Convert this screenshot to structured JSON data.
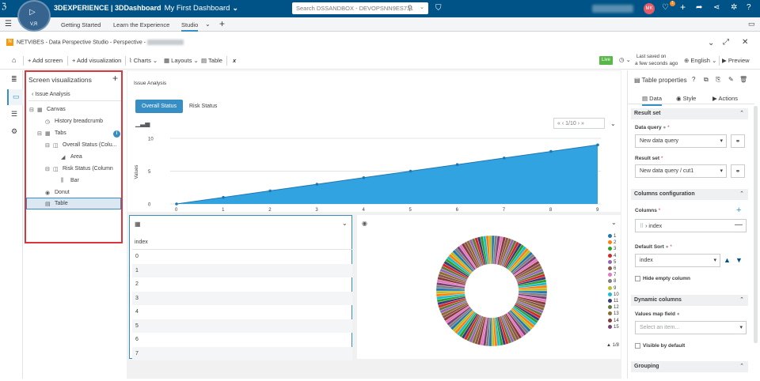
{
  "topbar": {
    "brand_bold": "3DEXPERIENCE | 3DDashboard",
    "dashboard_name": "My First Dashboard",
    "compass_label": "V,R",
    "search_placeholder": "Search DSSANDBOX - DEVOPSNN9ES7J1",
    "avatar_initials": "MK",
    "notification_count": "1"
  },
  "tabs": {
    "items": [
      "Getting Started",
      "Learn the Experience",
      "Studio"
    ],
    "active": "Studio"
  },
  "widget": {
    "title": "NETVIBES - Data Perspective Studio - Perspective -"
  },
  "toolbar": {
    "add_screen": "+ Add screen",
    "add_visualization": "+ Add visualization",
    "charts": "Charts",
    "layouts": "Layouts",
    "table": "Table",
    "live": "Live",
    "saved_line1": "Last saved on",
    "saved_line2": "a few seconds ago",
    "language": "English",
    "preview": "Preview"
  },
  "tree": {
    "title": "Screen visualizations",
    "crumb": "Issue Analysis",
    "nodes": {
      "canvas": "Canvas",
      "history": "History breadcrumb",
      "tabs": "Tabs",
      "overall": "Overall Status (Colu...",
      "area": "Area",
      "risk": "Risk Status (Column",
      "bar": "Bar",
      "donut": "Donut",
      "table": "Table"
    }
  },
  "canvas": {
    "title": "Issue Analysis",
    "tab_overall": "Overall Status",
    "tab_risk": "Risk Status",
    "pager": "1/10"
  },
  "chart_data": {
    "type": "area",
    "x": [
      0,
      1,
      2,
      3,
      4,
      5,
      6,
      7,
      8,
      9
    ],
    "values": [
      0,
      1,
      2,
      3,
      4,
      5,
      6,
      7,
      8,
      9
    ],
    "ylabel": "Values",
    "ylim": [
      0,
      10
    ],
    "yticks": [
      0,
      5,
      10
    ],
    "color": "#31a3e0"
  },
  "table": {
    "header": "index",
    "rows": [
      "0",
      "1",
      "2",
      "3",
      "4",
      "5",
      "6",
      "7"
    ]
  },
  "donut": {
    "legend": [
      "1",
      "2",
      "3",
      "4",
      "5",
      "6",
      "7",
      "8",
      "9",
      "10",
      "11",
      "12",
      "13",
      "14",
      "15"
    ],
    "legend_colors": [
      "#1f77b4",
      "#ff7f0e",
      "#2ca02c",
      "#d62728",
      "#9467bd",
      "#8c564b",
      "#e377c2",
      "#7f7f7f",
      "#bcbd22",
      "#17becf",
      "#393b79",
      "#637939",
      "#8c6d31",
      "#843c39",
      "#7b4173"
    ],
    "pager": "1/8"
  },
  "props": {
    "title": "Table properties",
    "tab_data": "Data",
    "tab_style": "Style",
    "tab_actions": "Actions",
    "section_result": "Result set",
    "data_query_label": "Data query",
    "data_query_value": "New data query",
    "result_set_label": "Result set",
    "result_set_value": "New data query / cut1",
    "section_columns": "Columns configuration",
    "columns_label": "Columns",
    "column_value": "index",
    "default_sort_label": "Default Sort",
    "default_sort_value": "index",
    "hide_empty": "Hide empty column",
    "section_dynamic": "Dynamic columns",
    "values_map_label": "Values map field",
    "values_map_placeholder": "Select an item...",
    "visible_default": "Visible by default",
    "section_grouping": "Grouping"
  }
}
